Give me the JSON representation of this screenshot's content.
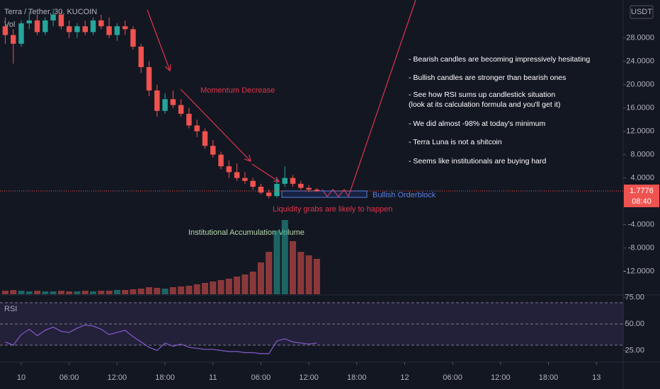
{
  "chart_data": {
    "type": "candlestick",
    "title": "Terra / Tether, 30, KUCOIN",
    "volume_label": "Vol",
    "currency": "USDT",
    "x": [
      -2,
      -1,
      0,
      1,
      2,
      3,
      4,
      5,
      6,
      7,
      8,
      9,
      10,
      11,
      12,
      13,
      14,
      15,
      16,
      17,
      18,
      19,
      20,
      21,
      22,
      23,
      24,
      25,
      26,
      27,
      28,
      29,
      30,
      31,
      32,
      33,
      34,
      35,
      36,
      37
    ],
    "xlim": [
      -2.66,
      75.35
    ],
    "xticks": [
      {
        "value": 0,
        "label": "10"
      },
      {
        "value": 6,
        "label": "06:00"
      },
      {
        "value": 12,
        "label": "12:00"
      },
      {
        "value": 18,
        "label": "18:00"
      },
      {
        "value": 24,
        "label": "11"
      },
      {
        "value": 30,
        "label": "06:00"
      },
      {
        "value": 36,
        "label": "12:00"
      },
      {
        "value": 42,
        "label": "18:00"
      },
      {
        "value": 48,
        "label": "12"
      },
      {
        "value": 54,
        "label": "06:00"
      },
      {
        "value": 60,
        "label": "12:00"
      },
      {
        "value": 66,
        "label": "18:00"
      },
      {
        "value": 72,
        "label": "13"
      }
    ],
    "ylim": [
      -15.8,
      34.5
    ],
    "yticks": [
      {
        "value": 28,
        "label": "28.0000"
      },
      {
        "value": 24,
        "label": "24.0000"
      },
      {
        "value": 20,
        "label": "20.0000"
      },
      {
        "value": 16,
        "label": "16.0000"
      },
      {
        "value": 12,
        "label": "12.0000"
      },
      {
        "value": 8,
        "label": "8.0000"
      },
      {
        "value": 4,
        "label": "4.0000"
      },
      {
        "value": -4,
        "label": "-4.0000"
      },
      {
        "value": -8,
        "label": "-8.0000"
      },
      {
        "value": -12,
        "label": "-12.0000"
      }
    ],
    "candles": [
      [
        30,
        31.5,
        27,
        28.5
      ],
      [
        28.5,
        29.5,
        23.6,
        27
      ],
      [
        27,
        31,
        26.5,
        30.5
      ],
      [
        30.5,
        32.5,
        29.5,
        31
      ],
      [
        31,
        32,
        28.5,
        29
      ],
      [
        29,
        31.5,
        28.5,
        31
      ],
      [
        31,
        33,
        30,
        32
      ],
      [
        32,
        32.5,
        29.5,
        30
      ],
      [
        30,
        31,
        28,
        29
      ],
      [
        29,
        30.5,
        28,
        30
      ],
      [
        30,
        31,
        28.5,
        29
      ],
      [
        29,
        31.5,
        28.5,
        31
      ],
      [
        31,
        32,
        29.5,
        30
      ],
      [
        30,
        31.5,
        28,
        28.5
      ],
      [
        28.5,
        30.5,
        27.5,
        30
      ],
      [
        30,
        31,
        28.5,
        29.5
      ],
      [
        29.5,
        30,
        26,
        26.5
      ],
      [
        26.5,
        27,
        22,
        23
      ],
      [
        23,
        24,
        18,
        19
      ],
      [
        19,
        20,
        14.5,
        15.5
      ],
      [
        15.5,
        18.5,
        15,
        17.5
      ],
      [
        17.5,
        19,
        16,
        16.5
      ],
      [
        16.5,
        17.5,
        14.5,
        15
      ],
      [
        15,
        16,
        12.5,
        13
      ],
      [
        13,
        14,
        11,
        12
      ],
      [
        12,
        12.5,
        9,
        9.5
      ],
      [
        9.5,
        10.5,
        7.5,
        8
      ],
      [
        8,
        8.5,
        5.5,
        6
      ],
      [
        6,
        7,
        4,
        5
      ],
      [
        5,
        6.5,
        3.5,
        4
      ],
      [
        4,
        5,
        3,
        3.5
      ],
      [
        3.5,
        4,
        2,
        2.5
      ],
      [
        2.5,
        3,
        1.2,
        1.5
      ],
      [
        1.5,
        2,
        0.5,
        0.9
      ],
      [
        0.9,
        4,
        0.6,
        3
      ],
      [
        3,
        6,
        2.5,
        4
      ],
      [
        4,
        4.5,
        2.5,
        3
      ],
      [
        3,
        3.5,
        2,
        2.3
      ],
      [
        2.3,
        2.8,
        1.6,
        2
      ],
      [
        2,
        2.3,
        1.6,
        1.78
      ]
    ],
    "up_color": "#26a69a",
    "down_color": "#ef5350",
    "volume": {
      "values": [
        5,
        6,
        5,
        4,
        5,
        4,
        4,
        5,
        4,
        4,
        5,
        4,
        5,
        5,
        6,
        6,
        7,
        8,
        10,
        9,
        8,
        10,
        11,
        12,
        14,
        16,
        18,
        20,
        22,
        25,
        28,
        32,
        45,
        60,
        90,
        105,
        75,
        60,
        55,
        50
      ],
      "vlim": [
        0,
        120
      ]
    },
    "current_price": {
      "value": 1.7776,
      "countdown": "08:40"
    },
    "rsi": {
      "name": "RSI",
      "color": "#7e57c2",
      "values": [
        33,
        30,
        40,
        45,
        39,
        44,
        47,
        43,
        42,
        46,
        49,
        48,
        45,
        40,
        42,
        44,
        38,
        33,
        28,
        25,
        32,
        29,
        31,
        28,
        27,
        26,
        26,
        25,
        24,
        24,
        23,
        23,
        22,
        22,
        34,
        36,
        33,
        32,
        31,
        32
      ],
      "ylim": [
        18.7,
        75.3
      ],
      "yticks": [
        {
          "value": 75,
          "label": "75.00"
        },
        {
          "value": 50,
          "label": "50.00"
        },
        {
          "value": 25,
          "label": "25.00"
        }
      ],
      "band": [
        30,
        70
      ],
      "mid": 50
    },
    "annotations": {
      "momentum": "Momentum Decrease",
      "liquidity": "Liquidity grabs are likely to happen",
      "orderblock": "Bullish Orderblock",
      "volume_note": "Institutional Accumulation Volume",
      "notes": [
        "- Bearish candles are becoming impressively hesitating",
        "- Bullish candles are stronger than bearish ones",
        "- See how RSI sums up candlestick situation",
        "(look at its calculation formula and you'll get it)",
        "- We did almost -98% at today's minimum",
        "- Terra Luna is not a shitcoin",
        "- Seems like institutionals are buying hard"
      ]
    }
  }
}
